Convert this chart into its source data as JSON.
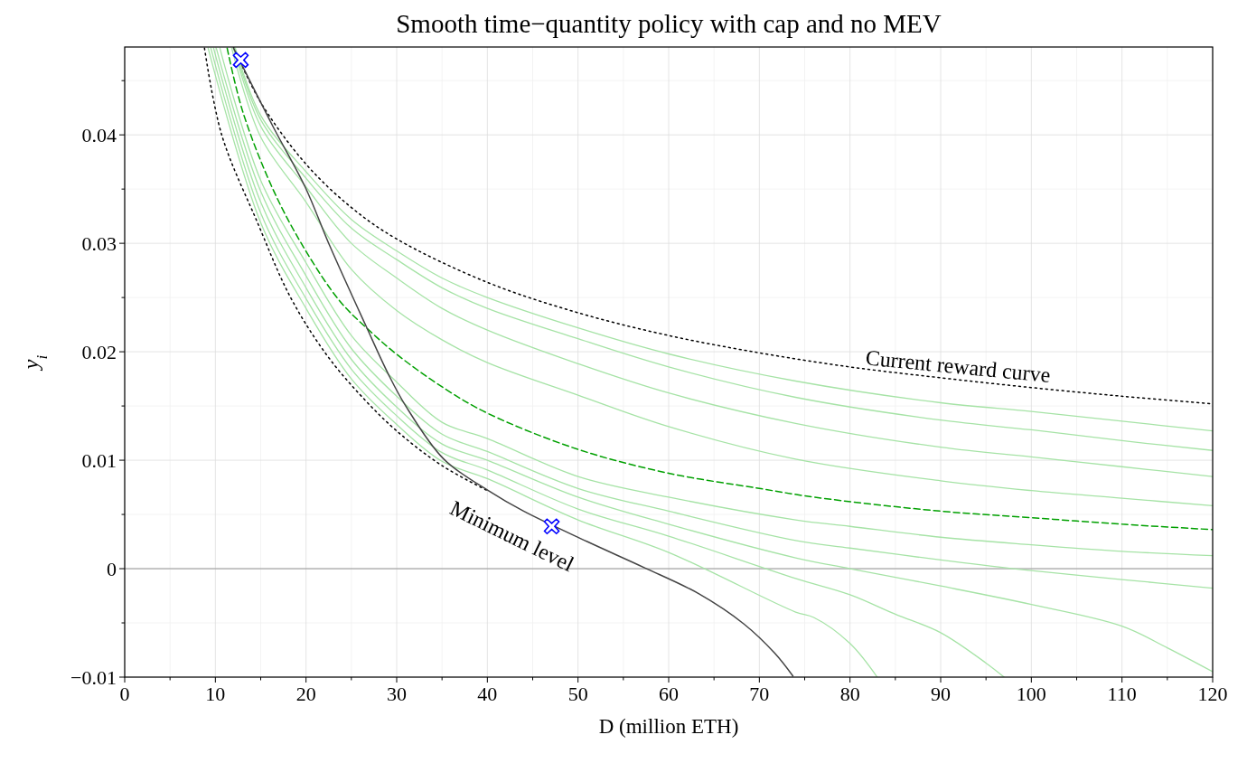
{
  "chart_data": {
    "type": "line",
    "title": "Smooth time−quantity policy with cap and no MEV",
    "xlabel": "D (million ETH)",
    "ylabel": "y$_{i}$",
    "xlim": [
      0,
      120
    ],
    "ylim": [
      -0.01,
      0.0481
    ],
    "xticks": [
      0,
      10,
      20,
      30,
      40,
      50,
      60,
      70,
      80,
      90,
      100,
      110,
      120
    ],
    "yticks": [
      {
        "value": -0.01,
        "label": "−0.01"
      },
      0,
      0.01,
      0.02,
      0.03,
      0.04
    ],
    "grid": true,
    "ref_lines": [
      {
        "axis": "y",
        "value": 0,
        "color": "#999999"
      }
    ],
    "annotations": [
      "Current reward curve",
      "Minimum level"
    ],
    "series": [
      {
        "type": "line",
        "color": "#000000",
        "line_style": "dotted",
        "x": [
          12,
          15,
          20,
          25,
          30,
          40,
          50,
          60,
          70,
          80,
          90,
          100,
          110,
          120
        ],
        "values": [
          0.0481,
          0.043,
          0.0373,
          0.0333,
          0.0304,
          0.0264,
          0.0236,
          0.0215,
          0.0199,
          0.0186,
          0.0176,
          0.0167,
          0.0159,
          0.0152
        ]
      },
      {
        "type": "line",
        "color": "#000000",
        "line_style": "dotted",
        "x": [
          8.8,
          10.7,
          14.6,
          18.3,
          22.2,
          26,
          30,
          35,
          40
        ],
        "values": [
          0.048,
          0.04,
          0.032,
          0.025,
          0.0198,
          0.016,
          0.0127,
          0.0095,
          0.0072
        ]
      },
      {
        "type": "line",
        "color": "#a6e3a6",
        "line_style": "solid",
        "x": [
          12.2,
          15,
          20,
          25,
          30,
          35,
          40,
          50,
          60,
          74,
          90,
          100,
          110,
          120
        ],
        "values": [
          0.048,
          0.0418,
          0.0366,
          0.0322,
          0.0293,
          0.0268,
          0.025,
          0.0222,
          0.0198,
          0.0173,
          0.0153,
          0.0145,
          0.0136,
          0.0127
        ]
      },
      {
        "type": "line",
        "color": "#a6e3a6",
        "line_style": "solid",
        "x": [
          12.1,
          15,
          20,
          25,
          30,
          35,
          40,
          50,
          60,
          74,
          90,
          100,
          110,
          120
        ],
        "values": [
          0.048,
          0.0414,
          0.036,
          0.0314,
          0.0285,
          0.0259,
          0.024,
          0.0212,
          0.0186,
          0.0158,
          0.0137,
          0.0128,
          0.0118,
          0.0109
        ]
      },
      {
        "type": "line",
        "color": "#a6e3a6",
        "line_style": "solid",
        "x": [
          12,
          15,
          20,
          25,
          30,
          35,
          40,
          50,
          60,
          74,
          90,
          100,
          110,
          120
        ],
        "values": [
          0.048,
          0.0408,
          0.0352,
          0.03,
          0.0268,
          0.024,
          0.022,
          0.0189,
          0.0162,
          0.0134,
          0.0112,
          0.0103,
          0.0094,
          0.0085
        ]
      },
      {
        "type": "line",
        "color": "#a6e3a6",
        "line_style": "solid",
        "x": [
          11.8,
          15,
          20,
          25,
          30,
          35,
          40,
          50,
          60,
          74,
          90,
          100,
          110,
          120
        ],
        "values": [
          0.048,
          0.0398,
          0.0338,
          0.0276,
          0.0238,
          0.0211,
          0.019,
          0.016,
          0.0131,
          0.0101,
          0.0081,
          0.0072,
          0.0065,
          0.0058
        ]
      },
      {
        "type": "line",
        "color": "#00a000",
        "line_style": "dashed",
        "x": [
          11.3,
          13,
          16.4,
          19.9,
          23.7,
          26.8,
          30.1,
          35.3,
          40.1,
          50,
          60,
          70,
          76,
          90,
          100,
          110,
          120
        ],
        "values": [
          0.048,
          0.0422,
          0.0349,
          0.0294,
          0.0247,
          0.0221,
          0.0197,
          0.0166,
          0.0143,
          0.011,
          0.0088,
          0.0074,
          0.0066,
          0.0053,
          0.0047,
          0.0041,
          0.0036
        ]
      },
      {
        "type": "line",
        "color": "#a6e3a6",
        "line_style": "solid",
        "x": [
          10.5,
          15,
          20,
          25,
          30,
          35,
          40,
          50,
          60,
          74,
          80,
          90,
          100,
          110,
          120
        ],
        "values": [
          0.048,
          0.0358,
          0.0282,
          0.0215,
          0.0172,
          0.0135,
          0.012,
          0.0085,
          0.0066,
          0.0045,
          0.0039,
          0.0029,
          0.0022,
          0.0016,
          0.0012
        ]
      },
      {
        "type": "line",
        "color": "#a6e3a6",
        "line_style": "solid",
        "x": [
          10.1,
          15,
          20,
          25,
          30,
          35,
          40,
          50,
          60,
          74,
          80,
          90,
          98,
          110,
          120
        ],
        "values": [
          0.048,
          0.0348,
          0.027,
          0.0203,
          0.0159,
          0.0124,
          0.0108,
          0.0074,
          0.0053,
          0.0026,
          0.0019,
          0.0008,
          0,
          -0.001,
          -0.0018
        ]
      },
      {
        "type": "line",
        "color": "#a6e3a6",
        "line_style": "solid",
        "x": [
          9.8,
          15,
          20,
          25,
          30,
          35,
          40,
          50,
          60,
          74,
          80,
          90,
          100,
          110,
          115,
          120
        ],
        "values": [
          0.048,
          0.0338,
          0.0259,
          0.0193,
          0.0149,
          0.0115,
          0.01,
          0.0066,
          0.0041,
          0.001,
          0,
          -0.0016,
          -0.0033,
          -0.0053,
          -0.0073,
          -0.0095
        ]
      },
      {
        "type": "line",
        "color": "#a6e3a6",
        "line_style": "solid",
        "x": [
          9.5,
          15,
          20,
          25,
          30,
          35,
          40,
          50,
          60,
          74,
          80,
          85,
          90,
          95,
          97
        ],
        "values": [
          0.048,
          0.0328,
          0.0249,
          0.0184,
          0.0141,
          0.0107,
          0.0091,
          0.0055,
          0.003,
          -0.0009,
          -0.0024,
          -0.0042,
          -0.0059,
          -0.0087,
          -0.01
        ]
      },
      {
        "type": "line",
        "color": "#a6e3a6",
        "line_style": "solid",
        "x": [
          9.2,
          15,
          20,
          25,
          30,
          35,
          40,
          50,
          60,
          74,
          76,
          80,
          83
        ],
        "values": [
          0.048,
          0.0319,
          0.024,
          0.0175,
          0.0133,
          0.0099,
          0.0083,
          0.0045,
          0.0015,
          -0.004,
          -0.0045,
          -0.0069,
          -0.01
        ]
      },
      {
        "type": "line",
        "color": "#444444",
        "line_style": "solid",
        "x": [
          12,
          16.4,
          19.9,
          22.6,
          26.6,
          29.1,
          31,
          35.2,
          40.1,
          44,
          51,
          57.3,
          63.3,
          68.3,
          71.7,
          73.7
        ],
        "values": [
          0.048,
          0.0407,
          0.0352,
          0.0298,
          0.0224,
          0.0179,
          0.015,
          0.0101,
          0.0072,
          0.0053,
          0.0025,
          0.0001,
          -0.0023,
          -0.0051,
          -0.0078,
          -0.0099
        ]
      },
      {
        "type": "scatter",
        "color": "#0000ff",
        "marker": "cross",
        "x": [
          12.8,
          47.1
        ],
        "values": [
          0.0469,
          0.0039
        ]
      }
    ]
  }
}
